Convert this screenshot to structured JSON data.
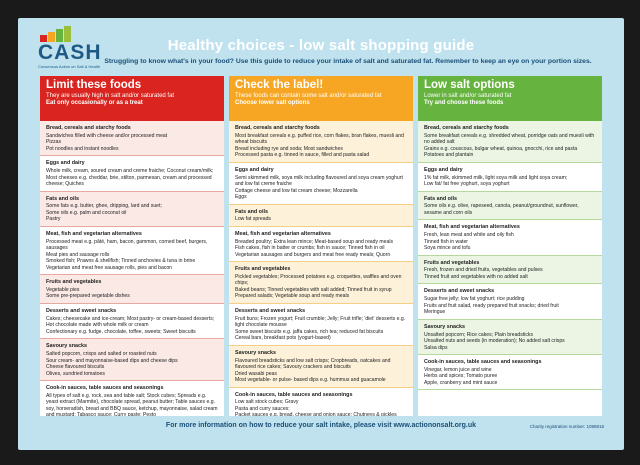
{
  "logo": {
    "text": "CASH",
    "subtitle": "Consensus Action on Salt & Health",
    "bar_colors": [
      "#d9241f",
      "#f6a623",
      "#66b33f",
      "#9bbf3a"
    ]
  },
  "header": {
    "title": "Healthy choices - low salt shopping guide",
    "intro": "Struggling to know what's in your food? Use this guide to reduce your intake of salt and saturated fat. Remember to keep an eye on your portion sizes."
  },
  "columns": [
    {
      "heading": "Limit these foods",
      "sub1": "They are usually high in salt and/or saturated fat",
      "sub2": "Eat only occasionally or as a treat",
      "color": "#d9241f",
      "sections": [
        {
          "title": "Bread, cereals and starchy foods",
          "body": "Sandwiches filled with cheese and/or processed meat\nPizzas\nPot noodles and instant noodles"
        },
        {
          "title": "Eggs and dairy",
          "body": "Whole milk, cream, soured cream and creme fraiche; Coconut cream/milk; Most cheeses e.g. cheddar, brie, stilton, parmesan, cream and processed cheese; Quiches"
        },
        {
          "title": "Fats and oils",
          "body": "Some fats e.g. butter, ghee, dripping, lard and suet;\nSome oils e.g. palm and coconut oil\nPastry"
        },
        {
          "title": "Meat, fish and vegetarian alternatives",
          "body": "Processed meat e.g. pâté, ham, bacon, gammon, corned beef, burgers, sausages\nMeat pies and sausage rolls\nSmoked fish; Prawns & shellfish; Tinned anchovies & tuna in brine\nVegetarian and meat free sausage rolls, pies and bacon"
        },
        {
          "title": "Fruits and vegetables",
          "body": "Vegetable pies\nSome pre-prepared vegetable dishes"
        },
        {
          "title": "Desserts and sweet snacks",
          "body": "Cakes; cheesecake and ice-cream; Most pastry- or cream-based desserts; Hot chocolate made with whole milk or cream\nConfectionary e.g. fudge, chocolate, toffee, sweets; Sweet biscuits"
        },
        {
          "title": "Savoury snacks",
          "body": "Salted popcorn, crisps and salted or roasted nuts\nSour cream- and mayonnaise-based dips and cheese dips\nCheese flavoured biscuits\nOlives, sundried tomatoes"
        },
        {
          "title": "Cook-in sauces, table sauces and seasonings",
          "body": "All types of salt e.g. rock, sea and table salt; Stock cubes; Spreads e.g. yeast extract (Marmite), chocolate spread, peanut butter; Table sauces e.g. soy, horseradish, bread and BBQ sauce, ketchup, mayonnaise, salad cream and mustard; Tabasco sauce; Curry paste; Pesto"
        }
      ]
    },
    {
      "heading": "Check the label!",
      "sub1": "These foods can contain some salt and/or saturated fat",
      "sub2": "Choose lower salt options",
      "color": "#f6a623",
      "sections": [
        {
          "title": "Bread, cereals and starchy foods",
          "body": "Most breakfast cereals e.g. puffed rice, corn flakes, bran flakes, muesli and wheat biscuits\nBread including rye and soda; Most sandwiches\nProcessed pasta e.g. tinned in sauce, filled and pasta salad"
        },
        {
          "title": "Eggs and dairy",
          "body": "Semi skimmed milk, soya milk including flavoured and soya cream yoghurt and low fat creme fraiche\nCottage cheese and low fat cream cheese; Mozzarella\nEggs"
        },
        {
          "title": "Fats and oils",
          "body": "Low fat spreads"
        },
        {
          "title": "Meat, fish and vegetarian alternatives",
          "body": "Breaded poultry; Extra lean mince; Meat-based soup and ready meals\nFish cakes, fish in batter or crumbs; fish in sauce; Tinned fish in oil\nVegetarian sausages and burgers and meat free ready meals; Quorn"
        },
        {
          "title": "Fruits and vegetables",
          "body": "Pickled vegetables; Processed potatoes e.g. croquettes, waffles and oven chips;\nBaked beans; Tinned vegetables with salt added; Tinned fruit in syrup\nPrepared salads; Vegetable soup and ready meals"
        },
        {
          "title": "Desserts and sweet snacks",
          "body": "Fruit buns; Frozen yogurt; Fruit crumble; Jelly; Fruit trifle; 'diet' desserts e.g. light chocolate mousse\nSome sweet biscuits e.g. jaffa cakes, rich tea; reduced fat biscuits\nCereal bars, breakfast pots (yogurt-based)"
        },
        {
          "title": "Savoury snacks",
          "body": "Flavoured breadsticks and low salt crisps; Cropbreads, oatcakes and flavoured rice cakes; Savoury crackers and biscuits\nDried wasabi peas\nMost vegetable- or pulse- based dips e.g. hummus and guacamole"
        },
        {
          "title": "Cook-in sauces, table sauces and seasonings",
          "body": "Low salt stock cubes; Gravy\nPasta and curry sauces;\nPacket sauces e.g. bread, cheese and onion sauce; Chutneys & pickles"
        }
      ]
    },
    {
      "heading": "Low salt options",
      "sub1": "Lower in salt and/or saturated fat",
      "sub2": "Try and choose these foods",
      "color": "#66b33f",
      "sections": [
        {
          "title": "Bread, cereals and starchy foods",
          "body": "Some breakfast cereals e.g. shredded wheat, porridge oats and muesli with no added salt\nGrains e.g. couscous, bulgar wheat, quinoa, gnocchi, rice and pasta\nPotatoes and plantain"
        },
        {
          "title": "Eggs and dairy",
          "body": "1% fat milk, skimmed milk, light soya milk and light soya cream;\nLow fat/ fat free yoghurt, soya yoghurt"
        },
        {
          "title": "Fats and oils",
          "body": "Some oils e.g. olive, rapeseed, canola, peanut/groundnut, sunflower, sesame and corn oils"
        },
        {
          "title": "Meat, fish and vegetarian alternatives",
          "body": "Fresh, lean meat and white and oily fish\nTinned fish in water\nSoya mince and tofu"
        },
        {
          "title": "Fruits and vegetables",
          "body": "Fresh, frozen and dried fruits, vegetables and pulses\nTinned fruit and vegetables with no added salt"
        },
        {
          "title": "Desserts and sweet snacks",
          "body": "Sugar free jelly; low fat yoghurt; rice pudding\nFruits and fruit salad, ready prepared fruit snacks; dried fruit\nMeringue"
        },
        {
          "title": "Savoury snacks",
          "body": "Unsalted popcorn; Rice cakes; Plain breadsticks\nUnsalted nuts and seeds (in moderation); No added salt crisps\nSalsa dips"
        },
        {
          "title": "Cook-in sauces, table sauces and seasonings",
          "body": "Vinegar, lemon juice and wine\nHerbs and spices; Tomato puree\nApple, cranberry and mint sauce"
        }
      ]
    }
  ],
  "footer": {
    "text": "For more information on how to reduce your salt intake, please visit www.actiononsalt.org.uk",
    "charity": "Charity registration number: 1098818"
  }
}
